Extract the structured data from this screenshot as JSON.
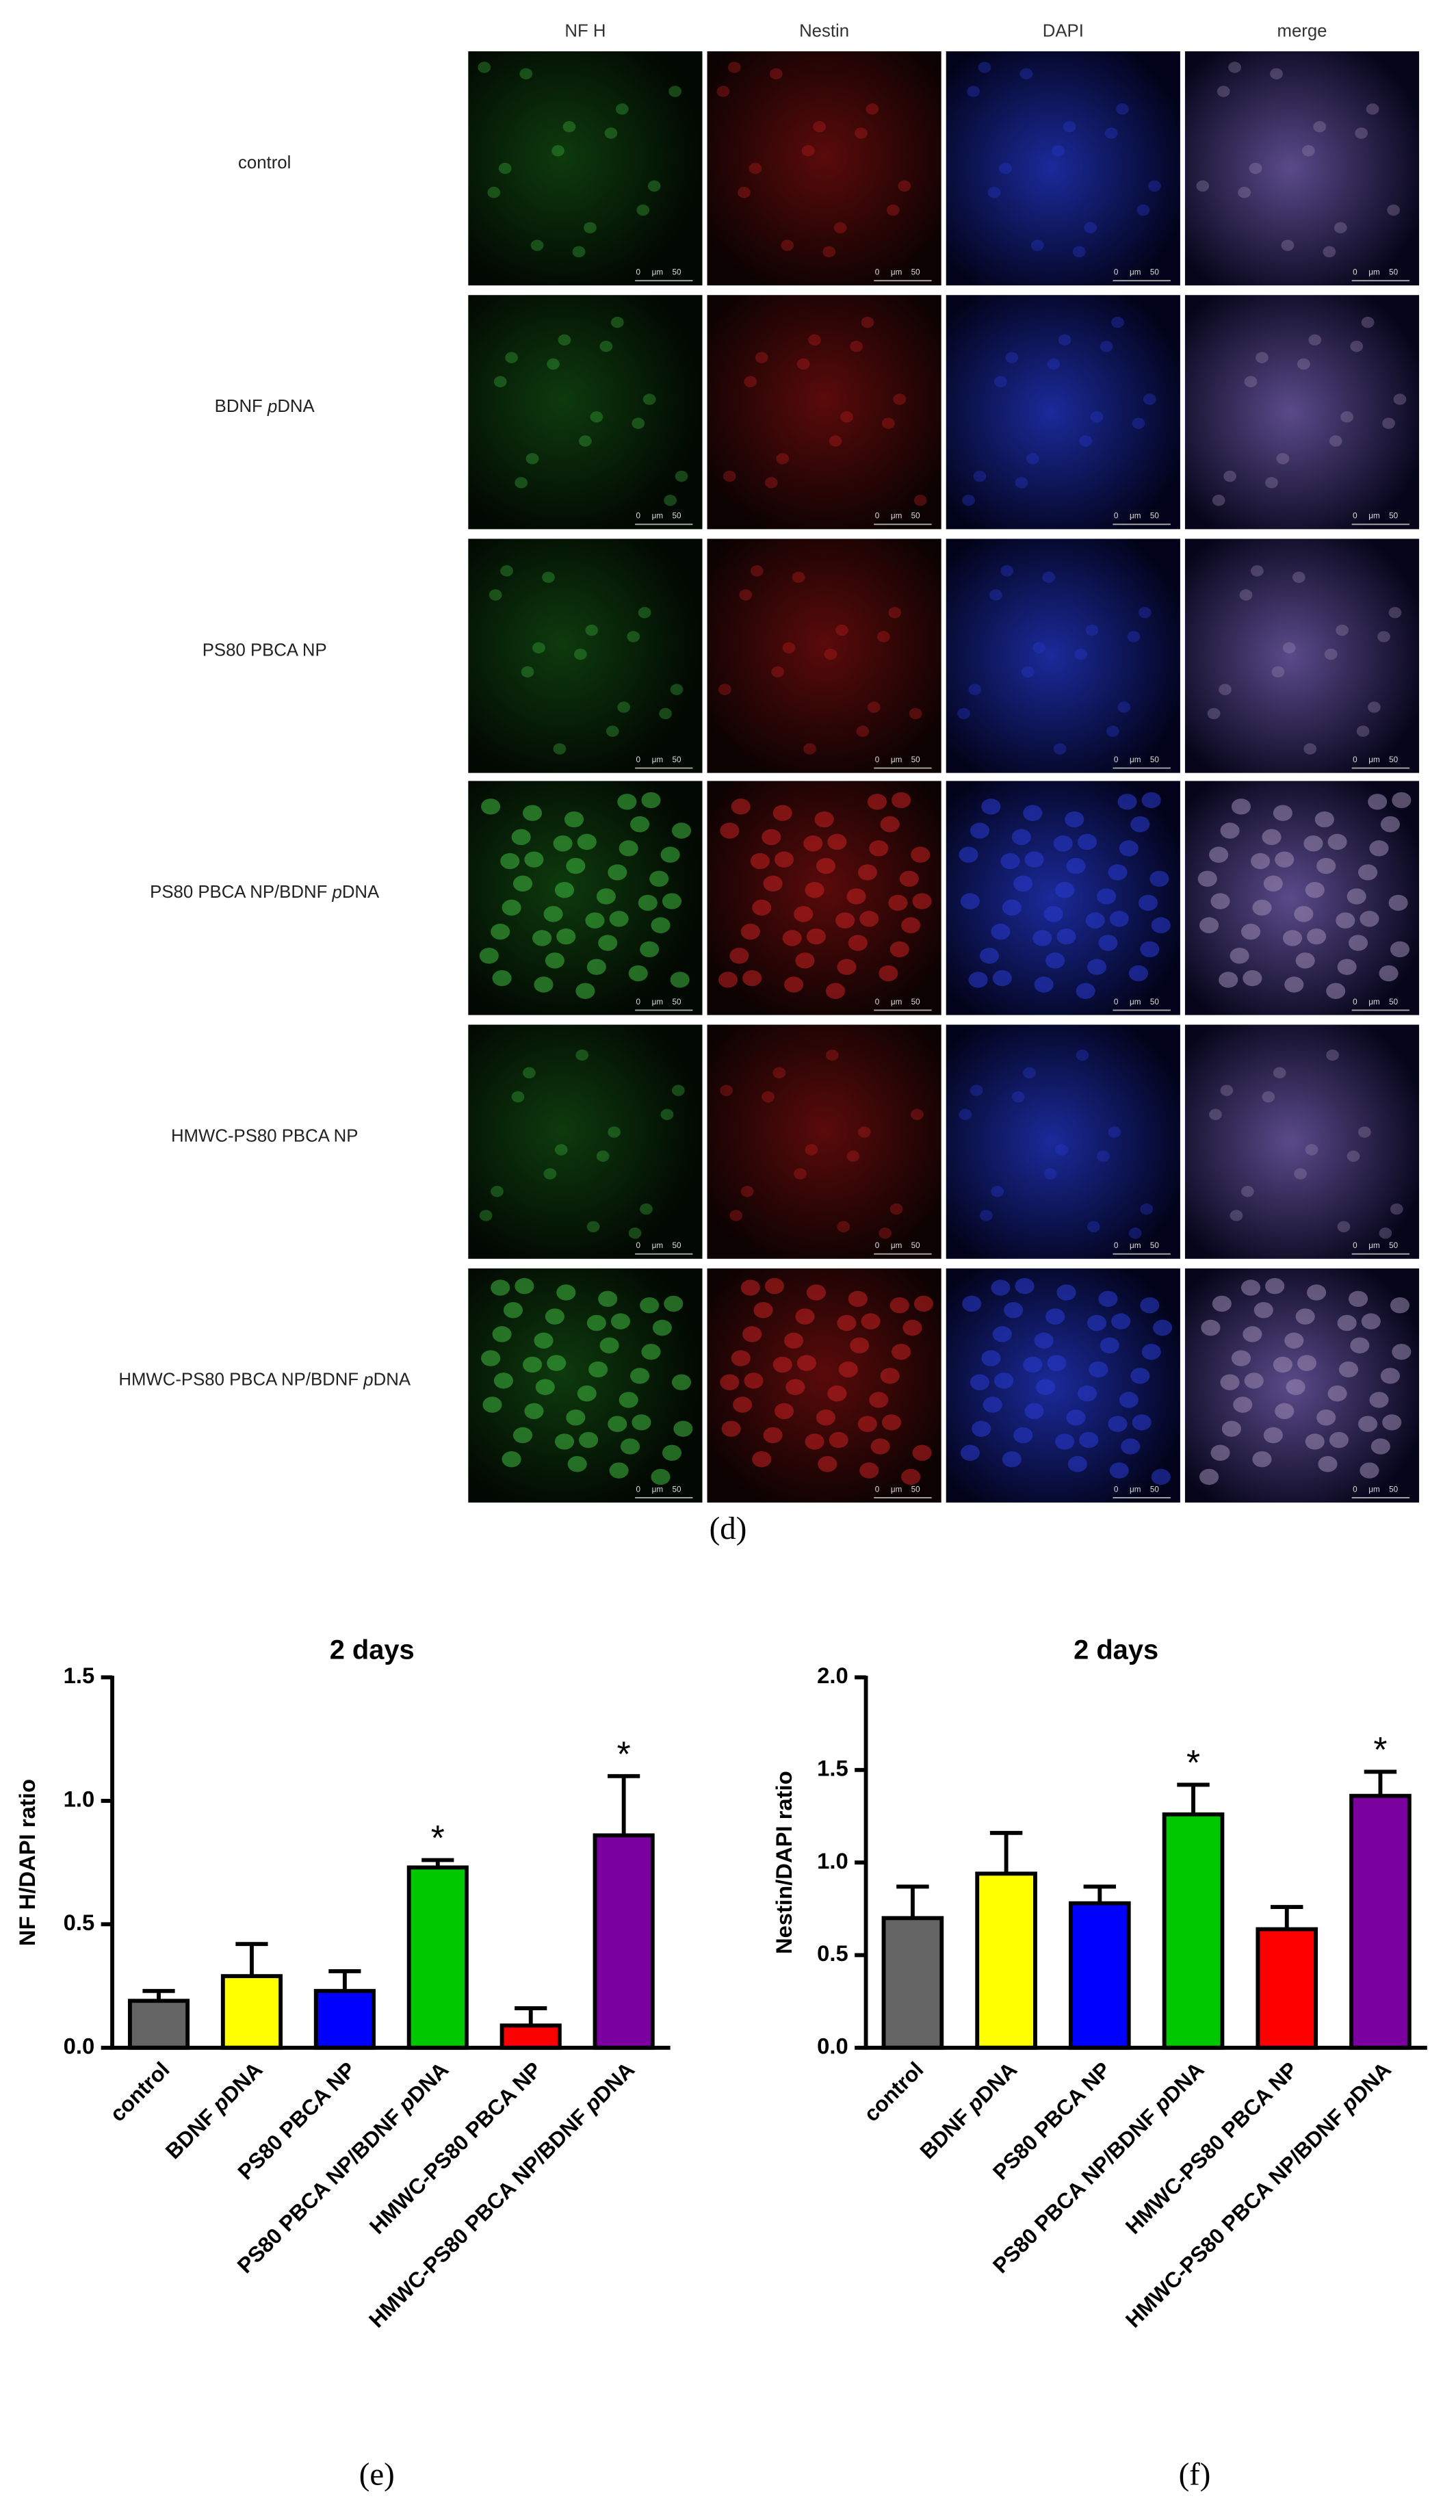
{
  "figure_d": {
    "columns": [
      "NF H",
      "Nestin",
      "DAPI",
      "merge"
    ],
    "rows": [
      "control",
      "BDNF pDNA",
      "PS80 PBCA NP",
      "PS80 PBCA NP/BDNF pDNA",
      "HMWC-PS80 PBCA NP",
      "HMWC-PS80 PBCA NP/BDNF pDNA"
    ],
    "scale_bar": [
      "0",
      "μm",
      "50"
    ],
    "panel_label": "(d)"
  },
  "chart_data": [
    {
      "type": "bar",
      "title": "2 days",
      "y_label": "NF H/DAPI ratio",
      "panel_label": "(e)",
      "categories": [
        "control",
        "BDNF pDNA",
        "PS80 PBCA NP",
        "PS80 PBCA NP/BDNF pDNA",
        "HMWC-PS80 PBCA NP",
        "HMWC-PS80 PBCA NP/BDNF pDNA"
      ],
      "values": [
        0.19,
        0.29,
        0.23,
        0.73,
        0.09,
        0.86
      ],
      "errors": [
        0.04,
        0.13,
        0.08,
        0.03,
        0.07,
        0.24
      ],
      "markers": [
        null,
        null,
        null,
        "*",
        null,
        "*"
      ],
      "colors": [
        "#646464",
        "#ffff00",
        "#0000ff",
        "#00c800",
        "#ff0000",
        "#7a00a0"
      ],
      "ylim": [
        0,
        1.5
      ],
      "yticks": [
        {
          "value": 0,
          "label": "0.0"
        },
        0.5,
        {
          "value": 1,
          "label": "1.0"
        },
        1.5
      ]
    },
    {
      "type": "bar",
      "title": "2 days",
      "y_label": "Nestin/DAPI ratio",
      "panel_label": "(f)",
      "categories": [
        "control",
        "BDNF pDNA",
        "PS80 PBCA NP",
        "PS80 PBCA NP/BDNF pDNA",
        "HMWC-PS80 PBCA NP",
        "HMWC-PS80 PBCA NP/BDNF pDNA"
      ],
      "values": [
        0.7,
        0.94,
        0.78,
        1.26,
        0.64,
        1.36
      ],
      "errors": [
        0.17,
        0.22,
        0.09,
        0.16,
        0.12,
        0.13
      ],
      "markers": [
        null,
        null,
        null,
        "*",
        null,
        "*"
      ],
      "colors": [
        "#646464",
        "#ffff00",
        "#0000ff",
        "#00c800",
        "#ff0000",
        "#7a00a0"
      ],
      "ylim": [
        0,
        2
      ],
      "yticks": [
        {
          "value": 0,
          "label": "0.0"
        },
        0.5,
        {
          "value": 1,
          "label": "1.0"
        },
        1.5,
        {
          "value": 2,
          "label": "2.0"
        }
      ]
    }
  ]
}
